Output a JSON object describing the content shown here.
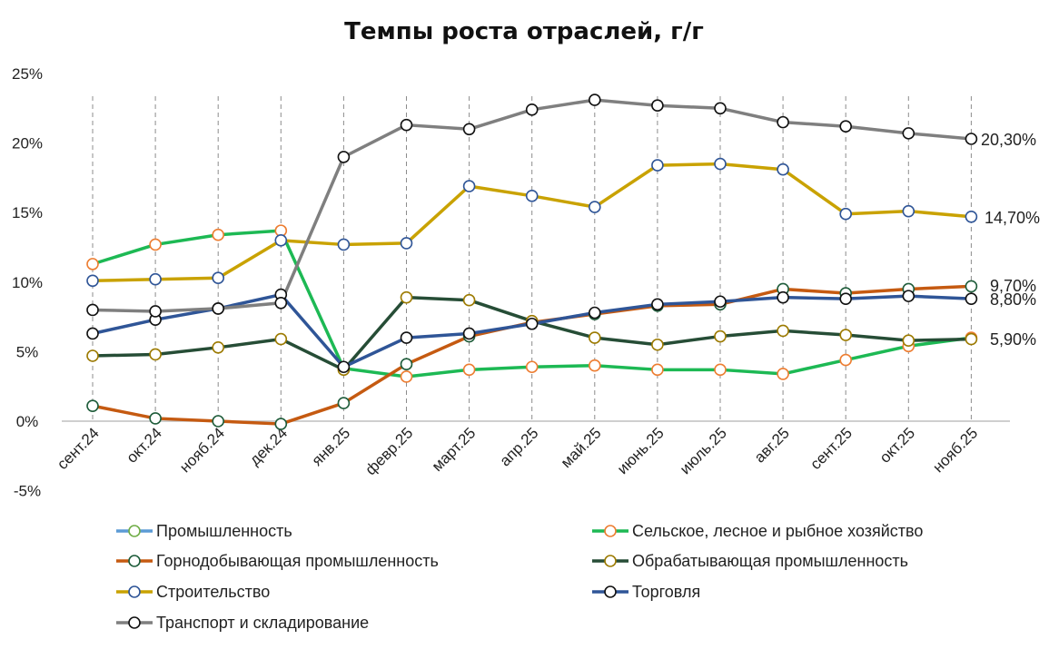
{
  "chart_data": {
    "type": "line",
    "title": "Темпы роста отраслей, г/г",
    "xlabel": "",
    "ylabel": "",
    "categories": [
      "сент.24",
      "окт.24",
      "нояб.24",
      "дек.24",
      "янв.25",
      "февр.25",
      "март.25",
      "апр.25",
      "май.25",
      "июнь.25",
      "июль.25",
      "авг.25",
      "сент.25",
      "окт.25",
      "нояб.25"
    ],
    "ylim": [
      -5,
      25
    ],
    "yticks": [
      -5,
      0,
      5,
      10,
      15,
      20,
      25
    ],
    "ytick_labels": [
      "-5%",
      "0%",
      "5%",
      "10%",
      "15%",
      "20%",
      "25%"
    ],
    "grid": "vertical dashed",
    "legend_position": "bottom",
    "series": [
      {
        "name": "Промышленность",
        "color": "#5b9bd5",
        "marker_edge": "#70ad47",
        "values": [
          null,
          null,
          null,
          null,
          null,
          null,
          null,
          null,
          null,
          null,
          null,
          null,
          null,
          null,
          null
        ]
      },
      {
        "name": "Сельское, лесное и рыбное хозяйство",
        "color": "#1db954",
        "marker_edge": "#ed7d31",
        "values": [
          11.3,
          12.7,
          13.4,
          13.7,
          3.8,
          3.2,
          3.7,
          3.9,
          4.0,
          3.7,
          3.7,
          3.4,
          4.4,
          5.4,
          6.0
        ]
      },
      {
        "name": "Горнодобывающая промышленность",
        "color": "#c55a11",
        "marker_edge": "#1e5c3a",
        "values": [
          1.1,
          0.2,
          0.0,
          -0.2,
          1.3,
          4.1,
          6.1,
          7.1,
          7.7,
          8.3,
          8.4,
          9.5,
          9.2,
          9.5,
          9.7
        ]
      },
      {
        "name": "Обрабатывающая промышленность",
        "color": "#264d36",
        "marker_edge": "#9c7a00",
        "values": [
          4.7,
          4.8,
          5.3,
          5.9,
          3.7,
          8.9,
          8.7,
          7.2,
          6.0,
          5.5,
          6.1,
          6.5,
          6.2,
          5.8,
          5.9
        ]
      },
      {
        "name": "Строительство",
        "color": "#c9a200",
        "marker_edge": "#2f5597",
        "values": [
          10.1,
          10.2,
          10.3,
          13.0,
          12.7,
          12.8,
          16.9,
          16.2,
          15.4,
          18.4,
          18.5,
          18.1,
          14.9,
          15.1,
          14.7
        ]
      },
      {
        "name": "Торговля",
        "color": "#2f5597",
        "marker_edge": "#111111",
        "values": [
          6.3,
          7.3,
          8.1,
          9.1,
          3.9,
          6.0,
          6.3,
          7.0,
          7.8,
          8.4,
          8.6,
          8.9,
          8.8,
          9.0,
          8.8
        ]
      },
      {
        "name": "Транспорт и складирование",
        "color": "#7f7f7f",
        "marker_edge": "#111111",
        "values": [
          8.0,
          7.9,
          8.1,
          8.5,
          19.0,
          21.3,
          21.0,
          22.4,
          23.1,
          22.7,
          22.5,
          21.5,
          21.2,
          20.7,
          20.3
        ]
      }
    ],
    "end_labels": [
      "20,30%",
      "14,70%",
      "9,70%",
      "8,80%",
      "5,90%"
    ]
  }
}
